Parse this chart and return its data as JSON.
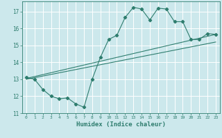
{
  "title": "",
  "xlabel": "Humidex (Indice chaleur)",
  "ylabel": "",
  "bg_color": "#cce8ec",
  "grid_color": "#ffffff",
  "line_color": "#2e7d6e",
  "xlim": [
    -0.5,
    23.5
  ],
  "ylim": [
    11,
    17.6
  ],
  "xticks": [
    0,
    1,
    2,
    3,
    4,
    5,
    6,
    7,
    8,
    9,
    10,
    11,
    12,
    13,
    14,
    15,
    16,
    17,
    18,
    19,
    20,
    21,
    22,
    23
  ],
  "yticks": [
    11,
    12,
    13,
    14,
    15,
    16,
    17
  ],
  "series1_x": [
    0,
    1,
    2,
    3,
    4,
    5,
    6,
    7,
    8,
    9,
    10,
    11,
    12,
    13,
    14,
    15,
    16,
    17,
    18,
    19,
    20,
    21,
    22,
    23
  ],
  "series1_y": [
    13.1,
    13.0,
    12.4,
    12.0,
    11.85,
    11.9,
    11.55,
    11.35,
    13.0,
    14.3,
    15.35,
    15.6,
    16.65,
    17.25,
    17.15,
    16.5,
    17.2,
    17.15,
    16.4,
    16.4,
    15.35,
    15.35,
    15.7,
    15.65
  ],
  "series2_x": [
    0,
    23
  ],
  "series2_y": [
    13.05,
    15.65
  ],
  "series3_x": [
    0,
    23
  ],
  "series3_y": [
    13.0,
    15.2
  ]
}
